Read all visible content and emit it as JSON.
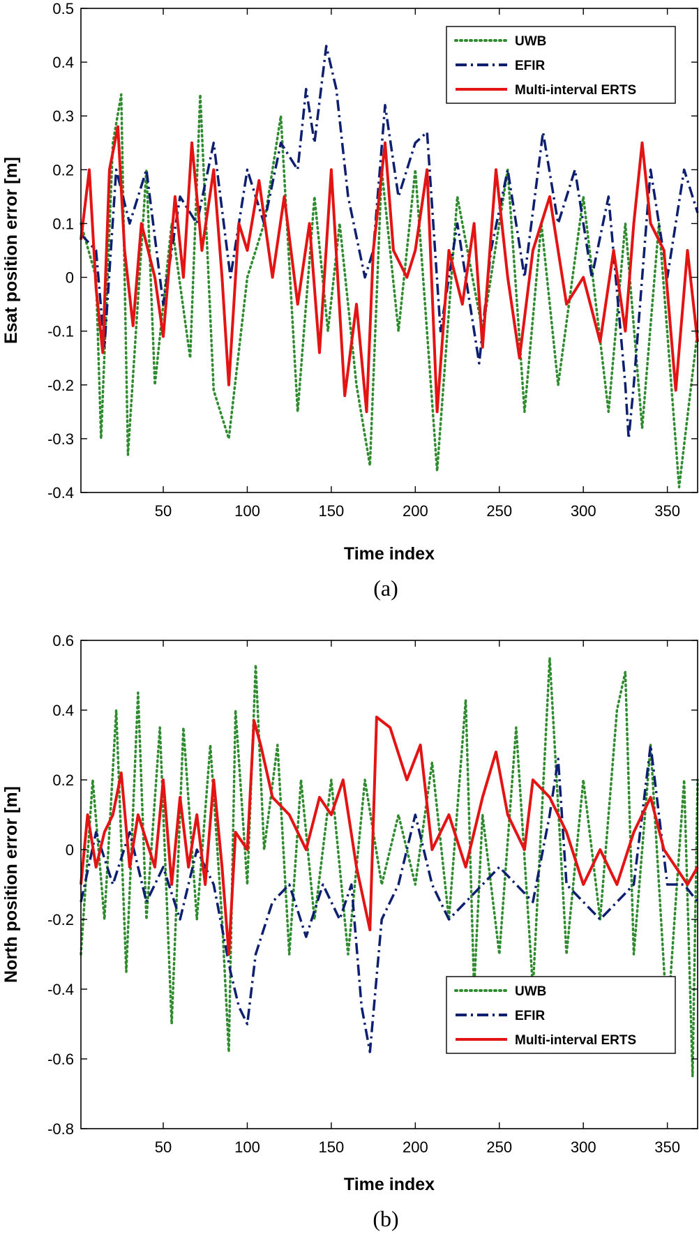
{
  "chart_data": [
    {
      "id": "a",
      "type": "line",
      "caption": "(a)",
      "xlabel": "Time index",
      "ylabel": "Esat position error [m]",
      "xlim": [
        1,
        368
      ],
      "ylim": [
        -0.4,
        0.5
      ],
      "xticks": [
        50,
        100,
        150,
        200,
        250,
        300,
        350
      ],
      "yticks": [
        -0.4,
        -0.3,
        -0.2,
        -0.1,
        0,
        0.1,
        0.2,
        0.3,
        0.4,
        0.5
      ],
      "ytick_labels": [
        "-0.4",
        "-0.3",
        "-0.2",
        "-0.1",
        "0",
        "0.1",
        "0.2",
        "0.3",
        "0.4",
        "0.5"
      ],
      "legend": "top-right",
      "series": [
        {
          "name": "UWB",
          "color": "#2e8b2e",
          "style": "dotted",
          "x": [
            1,
            10,
            13,
            20,
            25,
            29,
            40,
            45,
            55,
            66,
            72,
            80,
            89,
            100,
            110,
            120,
            130,
            140,
            148,
            155,
            165,
            173,
            180,
            190,
            200,
            213,
            225,
            240,
            255,
            265,
            275,
            285,
            300,
            315,
            325,
            335,
            345,
            357,
            368
          ],
          "values": [
            0.1,
            0.0,
            -0.3,
            0.25,
            0.34,
            -0.33,
            0.2,
            -0.2,
            0.1,
            -0.15,
            0.34,
            -0.21,
            -0.3,
            0.0,
            0.1,
            0.3,
            -0.25,
            0.15,
            -0.1,
            0.1,
            -0.2,
            -0.35,
            0.2,
            -0.1,
            0.2,
            -0.36,
            0.15,
            -0.1,
            0.2,
            -0.25,
            0.1,
            -0.2,
            0.15,
            -0.25,
            0.1,
            -0.28,
            0.1,
            -0.39,
            -0.1
          ]
        },
        {
          "name": "EFIR",
          "color": "#0d1f6e",
          "style": "dashdot",
          "x": [
            1,
            10,
            15,
            22,
            30,
            40,
            50,
            60,
            70,
            80,
            90,
            100,
            110,
            120,
            130,
            135,
            140,
            147,
            153,
            160,
            170,
            175,
            182,
            190,
            200,
            207,
            215,
            225,
            238,
            245,
            255,
            265,
            276,
            285,
            295,
            305,
            315,
            325,
            327,
            330,
            340,
            350,
            360,
            368
          ],
          "values": [
            0.08,
            0.05,
            -0.13,
            0.2,
            0.1,
            0.2,
            -0.05,
            0.15,
            0.1,
            0.25,
            0.0,
            0.2,
            0.1,
            0.25,
            0.2,
            0.35,
            0.25,
            0.43,
            0.35,
            0.15,
            0.0,
            0.05,
            0.32,
            0.15,
            0.25,
            0.27,
            -0.1,
            0.1,
            -0.16,
            0.05,
            0.2,
            0.0,
            0.27,
            0.1,
            0.2,
            0.0,
            0.15,
            -0.2,
            -0.3,
            -0.2,
            0.2,
            0.0,
            0.2,
            0.12
          ]
        },
        {
          "name": "Multi-interval ERTS",
          "color": "#e31414",
          "style": "solid",
          "x": [
            1,
            6,
            10,
            14,
            18,
            23,
            27,
            32,
            37,
            45,
            50,
            57,
            62,
            67,
            73,
            80,
            85,
            89,
            95,
            100,
            107,
            115,
            122,
            130,
            137,
            143,
            150,
            158,
            165,
            171,
            175,
            182,
            187,
            195,
            200,
            207,
            213,
            220,
            228,
            235,
            240,
            248,
            255,
            262,
            270,
            280,
            290,
            300,
            310,
            318,
            325,
            330,
            335,
            340,
            348,
            355,
            362,
            368
          ],
          "values": [
            0.07,
            0.2,
            -0.02,
            -0.14,
            0.2,
            0.28,
            0.05,
            -0.09,
            0.1,
            0.0,
            -0.11,
            0.15,
            0.0,
            0.25,
            0.05,
            0.2,
            0.0,
            -0.2,
            0.1,
            0.05,
            0.18,
            0.0,
            0.15,
            -0.05,
            0.1,
            -0.14,
            0.2,
            -0.22,
            -0.05,
            -0.25,
            0.05,
            0.25,
            0.05,
            0.0,
            0.05,
            0.2,
            -0.25,
            0.05,
            -0.05,
            0.1,
            -0.13,
            0.2,
            0.0,
            -0.15,
            0.05,
            0.15,
            -0.05,
            0.0,
            -0.12,
            0.05,
            -0.1,
            0.1,
            0.25,
            0.1,
            0.05,
            -0.21,
            0.05,
            -0.12
          ]
        }
      ]
    },
    {
      "id": "b",
      "type": "line",
      "caption": "(b)",
      "xlabel": "Time index",
      "ylabel": "North position error [m]",
      "xlim": [
        1,
        368
      ],
      "ylim": [
        -0.8,
        0.6
      ],
      "xticks": [
        50,
        100,
        150,
        200,
        250,
        300,
        350
      ],
      "yticks": [
        -0.8,
        -0.6,
        -0.4,
        -0.2,
        0,
        0.2,
        0.4,
        0.6
      ],
      "ytick_labels": [
        "-0.8",
        "-0.6",
        "-0.4",
        "-0.2",
        "0",
        "0.2",
        "0.4",
        "0.6"
      ],
      "legend": "bottom-right",
      "series": [
        {
          "name": "UWB",
          "color": "#2e8b2e",
          "style": "dotted",
          "x": [
            1,
            8,
            15,
            22,
            28,
            35,
            40,
            48,
            55,
            62,
            70,
            78,
            85,
            89,
            93,
            100,
            105,
            110,
            118,
            125,
            132,
            140,
            150,
            160,
            170,
            180,
            190,
            200,
            210,
            220,
            230,
            235,
            240,
            250,
            260,
            270,
            280,
            290,
            300,
            310,
            320,
            325,
            330,
            340,
            350,
            360,
            365,
            368
          ],
          "values": [
            -0.3,
            0.2,
            -0.2,
            0.4,
            -0.35,
            0.45,
            -0.2,
            0.35,
            -0.5,
            0.35,
            -0.2,
            0.3,
            -0.2,
            -0.58,
            0.4,
            -0.1,
            0.53,
            0.0,
            0.3,
            -0.3,
            0.2,
            -0.2,
            0.2,
            -0.3,
            0.2,
            -0.1,
            0.1,
            -0.1,
            0.25,
            -0.2,
            0.43,
            -0.4,
            0.1,
            -0.3,
            0.35,
            -0.4,
            0.55,
            -0.3,
            0.2,
            -0.2,
            0.4,
            0.51,
            -0.3,
            0.3,
            -0.5,
            0.2,
            -0.65,
            0.2
          ]
        },
        {
          "name": "EFIR",
          "color": "#0d1f6e",
          "style": "dashdot",
          "x": [
            1,
            10,
            20,
            30,
            40,
            50,
            60,
            70,
            80,
            90,
            95,
            100,
            105,
            115,
            125,
            135,
            145,
            155,
            162,
            168,
            173,
            180,
            190,
            200,
            210,
            220,
            230,
            240,
            250,
            260,
            270,
            280,
            285,
            290,
            300,
            310,
            320,
            330,
            340,
            350,
            360,
            368
          ],
          "values": [
            -0.15,
            0.05,
            -0.1,
            0.05,
            -0.15,
            -0.05,
            -0.2,
            0.0,
            -0.1,
            -0.35,
            -0.45,
            -0.5,
            -0.3,
            -0.15,
            -0.1,
            -0.25,
            -0.1,
            -0.2,
            -0.1,
            -0.45,
            -0.58,
            -0.2,
            -0.1,
            0.1,
            -0.1,
            -0.2,
            -0.15,
            -0.1,
            -0.05,
            -0.1,
            -0.15,
            0.1,
            0.26,
            -0.1,
            -0.15,
            -0.2,
            -0.15,
            -0.1,
            0.3,
            -0.1,
            -0.1,
            -0.15
          ]
        },
        {
          "name": "Multi-interval ERTS",
          "color": "#e31414",
          "style": "solid",
          "x": [
            1,
            5,
            10,
            15,
            20,
            25,
            30,
            35,
            45,
            50,
            55,
            60,
            65,
            70,
            75,
            80,
            85,
            89,
            93,
            100,
            104,
            108,
            115,
            125,
            135,
            143,
            150,
            157,
            165,
            173,
            177,
            185,
            195,
            203,
            210,
            220,
            230,
            240,
            248,
            255,
            265,
            270,
            280,
            290,
            300,
            310,
            320,
            330,
            340,
            348,
            355,
            362,
            368
          ],
          "values": [
            -0.1,
            0.1,
            -0.05,
            0.05,
            0.1,
            0.22,
            -0.05,
            0.1,
            -0.05,
            0.2,
            -0.1,
            0.15,
            -0.05,
            0.1,
            -0.1,
            0.2,
            -0.05,
            -0.3,
            0.05,
            0.0,
            0.37,
            0.3,
            0.15,
            0.1,
            0.0,
            0.15,
            0.1,
            0.2,
            -0.05,
            -0.23,
            0.38,
            0.35,
            0.2,
            0.3,
            0.0,
            0.1,
            -0.05,
            0.15,
            0.28,
            0.1,
            0.0,
            0.2,
            0.15,
            0.05,
            -0.1,
            0.0,
            -0.1,
            0.05,
            0.15,
            0.0,
            -0.05,
            -0.1,
            -0.05
          ]
        }
      ]
    }
  ]
}
